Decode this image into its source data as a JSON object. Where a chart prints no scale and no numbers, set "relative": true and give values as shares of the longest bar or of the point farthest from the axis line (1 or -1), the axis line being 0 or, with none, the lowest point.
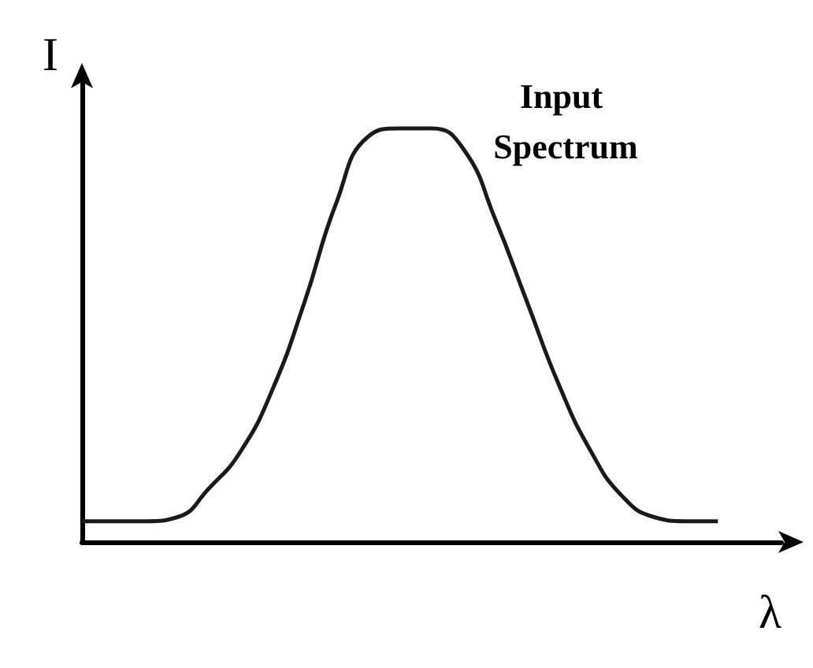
{
  "chart_data": {
    "type": "line",
    "title": "Input Spectrum",
    "xlabel": "λ",
    "ylabel": "I",
    "relative": true,
    "categories": [
      null,
      null,
      null,
      null,
      null,
      null,
      null,
      null,
      null,
      null,
      null,
      null,
      null,
      null,
      null,
      null,
      null,
      null,
      null,
      null,
      null,
      null,
      null
    ],
    "series": [
      {
        "color": "#1a1a1a",
        "values": [
          0.05,
          0.05,
          0.05,
          0.06,
          0.13,
          0.22,
          0.37,
          0.58,
          0.82,
          0.98,
          1.0,
          1.0,
          0.95,
          0.78,
          0.58,
          0.38,
          0.22,
          0.11,
          0.06,
          0.05,
          0.05,
          null,
          null
        ]
      }
    ],
    "grid": false,
    "marker": "none",
    "line_style": "solid"
  }
}
